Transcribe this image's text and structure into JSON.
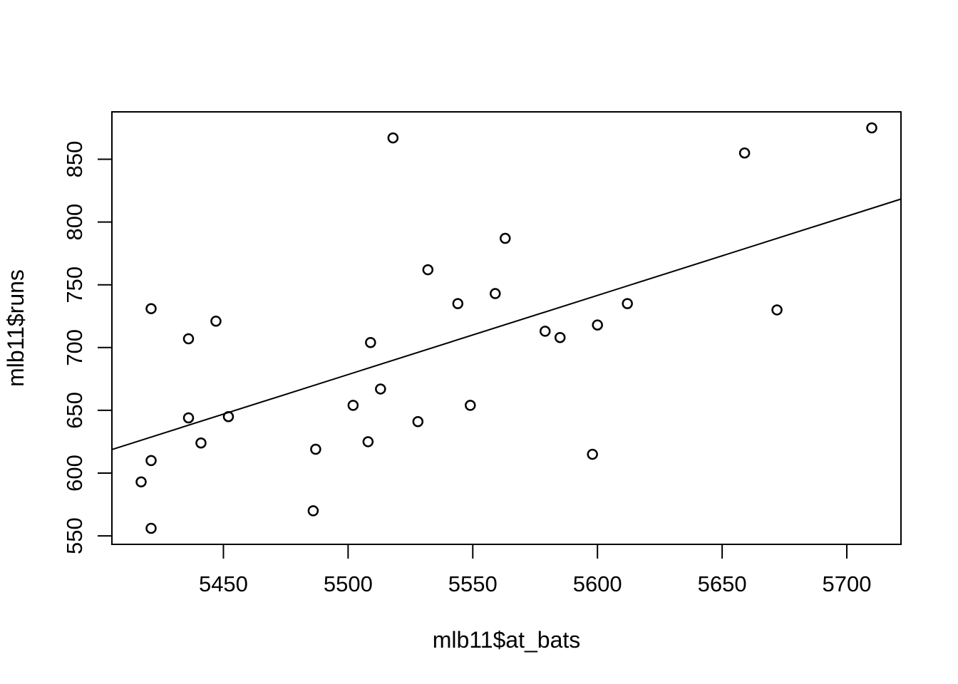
{
  "figure": {
    "background": "#ffffff",
    "foreground": "#000000"
  },
  "chart_data": {
    "type": "scatter",
    "title": "",
    "xlabel": "mlb11$at_bats",
    "ylabel": "mlb11$runs",
    "xlim": [
      5405.28,
      5721.72
    ],
    "ylim": [
      543.24,
      887.76
    ],
    "x_ticks": [
      5450,
      5500,
      5550,
      5600,
      5650,
      5700
    ],
    "y_ticks": [
      550,
      600,
      650,
      700,
      750,
      800,
      850
    ],
    "grid": false,
    "legend": null,
    "marker": "open-circle",
    "points": [
      {
        "x": 5659,
        "y": 855
      },
      {
        "x": 5710,
        "y": 875
      },
      {
        "x": 5563,
        "y": 787
      },
      {
        "x": 5672,
        "y": 730
      },
      {
        "x": 5532,
        "y": 762
      },
      {
        "x": 5600,
        "y": 718
      },
      {
        "x": 5518,
        "y": 867
      },
      {
        "x": 5447,
        "y": 721
      },
      {
        "x": 5544,
        "y": 735
      },
      {
        "x": 5598,
        "y": 615
      },
      {
        "x": 5585,
        "y": 708
      },
      {
        "x": 5421,
        "y": 731
      },
      {
        "x": 5559,
        "y": 743
      },
      {
        "x": 5487,
        "y": 619
      },
      {
        "x": 5508,
        "y": 625
      },
      {
        "x": 5421,
        "y": 610
      },
      {
        "x": 5436,
        "y": 644
      },
      {
        "x": 5549,
        "y": 654
      },
      {
        "x": 5612,
        "y": 735
      },
      {
        "x": 5528,
        "y": 641
      },
      {
        "x": 5486,
        "y": 570
      },
      {
        "x": 5509,
        "y": 704
      },
      {
        "x": 5502,
        "y": 654
      },
      {
        "x": 5513,
        "y": 667
      },
      {
        "x": 5579,
        "y": 713
      },
      {
        "x": 5452,
        "y": 645
      },
      {
        "x": 5436,
        "y": 707
      },
      {
        "x": 5441,
        "y": 624
      },
      {
        "x": 5417,
        "y": 593
      },
      {
        "x": 5421,
        "y": 556
      }
    ],
    "trend_line": {
      "slope": 0.6305,
      "intercept": -2789.2429
    }
  }
}
